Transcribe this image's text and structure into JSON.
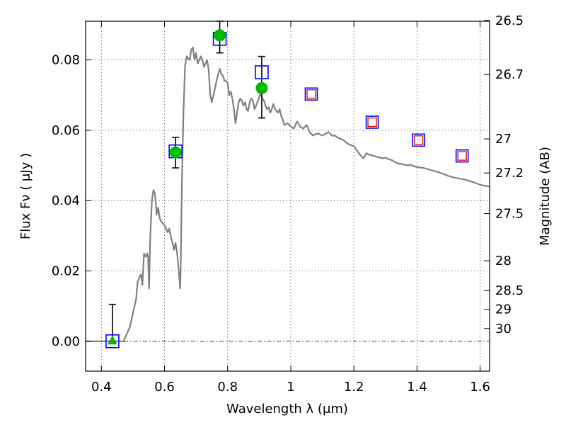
{
  "chart_data": {
    "type": "scatter",
    "title": "",
    "xlabel": "Wavelength  λ (μm)",
    "ylabel": "Flux  Fν  ( μJy )",
    "ylabel_right": "Magnitude (AB)",
    "xlim": [
      0.35,
      1.63
    ],
    "ylim": [
      -0.0085,
      0.091
    ],
    "grid": true,
    "x_ticks": [
      0.4,
      0.6,
      0.8,
      1.0,
      1.2,
      1.4,
      1.6
    ],
    "x_tick_labels": [
      "0.4",
      "0.6",
      "0.8",
      "1",
      "1.2",
      "1.4",
      "1.6"
    ],
    "y_ticks": [
      0.0,
      0.02,
      0.04,
      0.06,
      0.08
    ],
    "y_tick_labels": [
      "0.00",
      "0.02",
      "0.04",
      "0.06",
      "0.08"
    ],
    "right_ticks": [
      {
        "label": "26.5",
        "mag": 26.5
      },
      {
        "label": "26.7",
        "mag": 26.7
      },
      {
        "label": "27",
        "mag": 27.0
      },
      {
        "label": "27.2",
        "mag": 27.2
      },
      {
        "label": "27.5",
        "mag": 27.5
      },
      {
        "label": "28",
        "mag": 28.0
      },
      {
        "label": "28.5",
        "mag": 28.5
      },
      {
        "label": "29",
        "mag": 29.0
      },
      {
        "label": "30",
        "mag": 30.0
      }
    ],
    "series": [
      {
        "kind": "model-spectrum",
        "color": "#808080",
        "x": [
          0.35,
          0.47,
          0.48,
          0.49,
          0.5,
          0.51,
          0.515,
          0.52,
          0.525,
          0.53,
          0.535,
          0.54,
          0.545,
          0.548,
          0.551,
          0.555,
          0.56,
          0.565,
          0.57,
          0.575,
          0.58,
          0.585,
          0.59,
          0.6,
          0.61,
          0.615,
          0.62,
          0.63,
          0.635,
          0.64,
          0.645,
          0.65,
          0.652,
          0.655,
          0.66,
          0.665,
          0.67,
          0.675,
          0.68,
          0.685,
          0.69,
          0.695,
          0.7,
          0.705,
          0.71,
          0.715,
          0.72,
          0.725,
          0.73,
          0.735,
          0.74,
          0.745,
          0.75,
          0.755,
          0.76,
          0.765,
          0.77,
          0.775,
          0.78,
          0.785,
          0.79,
          0.795,
          0.8,
          0.805,
          0.81,
          0.815,
          0.82,
          0.825,
          0.83,
          0.835,
          0.84,
          0.845,
          0.85,
          0.855,
          0.86,
          0.865,
          0.87,
          0.875,
          0.88,
          0.885,
          0.89,
          0.9,
          0.905,
          0.91,
          0.915,
          0.92,
          0.925,
          0.93,
          0.935,
          0.94,
          0.945,
          0.95,
          0.955,
          0.96,
          0.965,
          0.97,
          0.975,
          0.98,
          0.99,
          1.0,
          1.01,
          1.02,
          1.03,
          1.04,
          1.05,
          1.06,
          1.07,
          1.08,
          1.09,
          1.1,
          1.11,
          1.12,
          1.13,
          1.14,
          1.15,
          1.16,
          1.17,
          1.18,
          1.19,
          1.2,
          1.21,
          1.22,
          1.23,
          1.24,
          1.25,
          1.26,
          1.27,
          1.28,
          1.29,
          1.3,
          1.31,
          1.32,
          1.33,
          1.34,
          1.35,
          1.36,
          1.37,
          1.38,
          1.39,
          1.4,
          1.42,
          1.44,
          1.46,
          1.48,
          1.5,
          1.52,
          1.54,
          1.56,
          1.58,
          1.6,
          1.63
        ],
        "y": [
          0.0,
          0.0,
          0.002,
          0.004,
          0.008,
          0.012,
          0.017,
          0.018,
          0.019,
          0.016,
          0.025,
          0.024,
          0.025,
          0.024,
          0.015,
          0.03,
          0.04,
          0.043,
          0.042,
          0.036,
          0.038,
          0.035,
          0.034,
          0.033,
          0.031,
          0.032,
          0.03,
          0.026,
          0.028,
          0.025,
          0.02,
          0.015,
          0.025,
          0.045,
          0.065,
          0.078,
          0.081,
          0.0805,
          0.08,
          0.083,
          0.0835,
          0.08,
          0.082,
          0.079,
          0.08,
          0.081,
          0.08,
          0.078,
          0.079,
          0.08,
          0.077,
          0.07,
          0.068,
          0.07,
          0.072,
          0.074,
          0.076,
          0.0775,
          0.076,
          0.0755,
          0.074,
          0.074,
          0.0735,
          0.07,
          0.071,
          0.069,
          0.066,
          0.062,
          0.065,
          0.068,
          0.069,
          0.0685,
          0.067,
          0.068,
          0.066,
          0.0655,
          0.068,
          0.069,
          0.0685,
          0.066,
          0.067,
          0.0695,
          0.0705,
          0.069,
          0.0685,
          0.067,
          0.066,
          0.0665,
          0.065,
          0.066,
          0.0675,
          0.066,
          0.0655,
          0.065,
          0.066,
          0.064,
          0.063,
          0.0615,
          0.062,
          0.061,
          0.0605,
          0.0625,
          0.061,
          0.0605,
          0.0615,
          0.0595,
          0.0585,
          0.059,
          0.059,
          0.0585,
          0.059,
          0.0595,
          0.0585,
          0.0585,
          0.0578,
          0.0575,
          0.057,
          0.0562,
          0.0558,
          0.0555,
          0.0542,
          0.053,
          0.052,
          0.0535,
          0.053,
          0.0528,
          0.0525,
          0.0523,
          0.052,
          0.0522,
          0.0518,
          0.0515,
          0.051,
          0.0505,
          0.0505,
          0.0502,
          0.05,
          0.0502,
          0.0498,
          0.0495,
          0.0493,
          0.0488,
          0.0483,
          0.0477,
          0.047,
          0.0465,
          0.0462,
          0.0458,
          0.0452,
          0.0445,
          0.044
        ]
      },
      {
        "kind": "observed-flux",
        "marker": "square",
        "color": "#0000ff",
        "points": [
          {
            "x": 0.435,
            "y": 0.0
          },
          {
            "x": 0.635,
            "y": 0.054
          },
          {
            "x": 0.775,
            "y": 0.086
          },
          {
            "x": 0.908,
            "y": 0.0765
          }
        ]
      },
      {
        "kind": "model-band-flux",
        "marker": "circle",
        "color": "#00bb00",
        "points": [
          {
            "x": 0.435,
            "y": 0.0,
            "marker": "triangle"
          },
          {
            "x": 0.635,
            "y": 0.0537
          },
          {
            "x": 0.775,
            "y": 0.087
          },
          {
            "x": 0.908,
            "y": 0.072
          }
        ]
      },
      {
        "kind": "error-bars",
        "color": "#000000",
        "points": [
          {
            "x": 0.435,
            "low": 0.0,
            "high": 0.0105
          },
          {
            "x": 0.635,
            "low": 0.0493,
            "high": 0.058
          },
          {
            "x": 0.775,
            "low": 0.082,
            "high": 0.091
          },
          {
            "x": 0.908,
            "low": 0.0635,
            "high": 0.081
          }
        ]
      },
      {
        "kind": "predicted-band-flux",
        "marker": "square-pair",
        "outer_color": "#0000ff",
        "inner_color": "#dd0000",
        "points": [
          {
            "x": 1.065,
            "y": 0.0703
          },
          {
            "x": 1.258,
            "y": 0.0623
          },
          {
            "x": 1.405,
            "y": 0.0572
          },
          {
            "x": 1.543,
            "y": 0.0527
          }
        ]
      }
    ],
    "zero_line": true
  }
}
